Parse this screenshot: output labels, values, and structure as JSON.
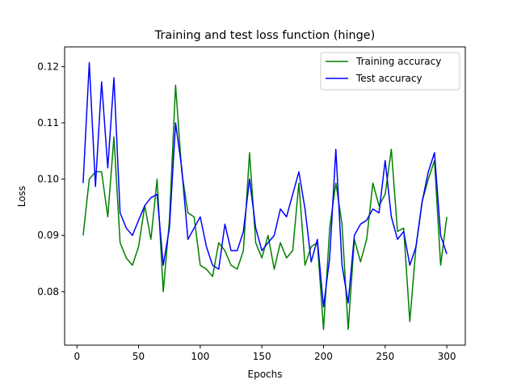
{
  "chart_data": {
    "type": "line",
    "title": "Training and test loss function (hinge)",
    "xlabel": "Epochs",
    "ylabel": "Loss",
    "xlim": [
      -10,
      315
    ],
    "ylim": [
      0.0705,
      0.1235
    ],
    "xticks": [
      0,
      50,
      100,
      150,
      200,
      250,
      300
    ],
    "yticks": [
      0.08,
      0.09,
      0.1,
      0.11,
      0.12
    ],
    "xtick_labels": [
      "0",
      "50",
      "100",
      "150",
      "200",
      "250",
      "300"
    ],
    "ytick_labels": [
      "0.08",
      "0.09",
      "0.10",
      "0.11",
      "0.12"
    ],
    "legend_position": "top-right",
    "grid": false,
    "x": [
      5,
      10,
      15,
      20,
      25,
      30,
      35,
      40,
      45,
      50,
      55,
      60,
      65,
      70,
      75,
      80,
      85,
      90,
      95,
      100,
      105,
      110,
      115,
      120,
      125,
      130,
      135,
      140,
      145,
      150,
      155,
      160,
      165,
      170,
      175,
      180,
      185,
      190,
      195,
      200,
      205,
      210,
      215,
      220,
      225,
      230,
      235,
      240,
      245,
      250,
      255,
      260,
      265,
      270,
      275,
      280,
      285,
      290,
      295,
      300
    ],
    "series": [
      {
        "name": "Training accuracy",
        "color": "#008000",
        "values": [
          0.09,
          0.1,
          0.1013,
          0.1013,
          0.0933,
          0.1075,
          0.0887,
          0.086,
          0.0847,
          0.088,
          0.0953,
          0.0893,
          0.1,
          0.08,
          0.0927,
          0.1167,
          0.1013,
          0.094,
          0.0933,
          0.0847,
          0.084,
          0.0827,
          0.0887,
          0.0873,
          0.0847,
          0.084,
          0.0873,
          0.1047,
          0.0887,
          0.086,
          0.09,
          0.084,
          0.0887,
          0.086,
          0.0873,
          0.0993,
          0.0847,
          0.088,
          0.0887,
          0.0733,
          0.0913,
          0.0993,
          0.092,
          0.0733,
          0.0893,
          0.0853,
          0.0893,
          0.0993,
          0.0953,
          0.0973,
          0.1053,
          0.0907,
          0.0913,
          0.0747,
          0.088,
          0.096,
          0.1,
          0.1033,
          0.0847,
          0.0933
        ]
      },
      {
        "name": "Test accuracy",
        "color": "#0000ff",
        "values": [
          0.0993,
          0.1207,
          0.0987,
          0.1173,
          0.102,
          0.118,
          0.094,
          0.0913,
          0.09,
          0.0927,
          0.0953,
          0.0967,
          0.0973,
          0.0847,
          0.0913,
          0.11,
          0.102,
          0.0893,
          0.0913,
          0.0933,
          0.088,
          0.0847,
          0.084,
          0.092,
          0.0873,
          0.0873,
          0.0907,
          0.1,
          0.0913,
          0.0873,
          0.0887,
          0.09,
          0.0947,
          0.0933,
          0.0973,
          0.1013,
          0.0947,
          0.0853,
          0.0893,
          0.0773,
          0.086,
          0.1053,
          0.0847,
          0.078,
          0.09,
          0.092,
          0.0927,
          0.0947,
          0.094,
          0.1033,
          0.0933,
          0.0893,
          0.0907,
          0.0847,
          0.088,
          0.096,
          0.1013,
          0.1047,
          0.09,
          0.0867
        ]
      }
    ]
  }
}
